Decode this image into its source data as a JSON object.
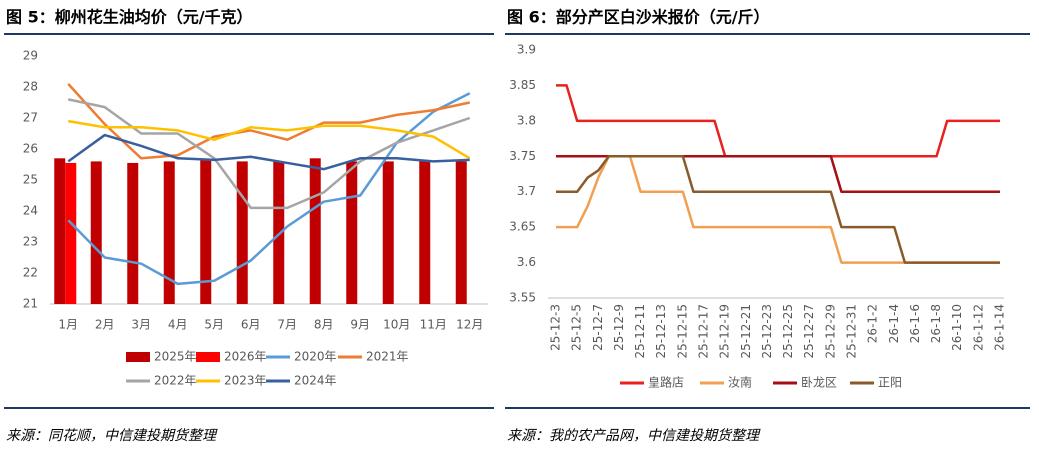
{
  "chart_data": [
    {
      "type": "combo",
      "title": "图 5：柳州花生油均价（元/千克）",
      "source": "来源：同花顺，中信建投期货整理",
      "categories": [
        "1月",
        "2月",
        "3月",
        "4月",
        "5月",
        "6月",
        "7月",
        "8月",
        "9月",
        "10月",
        "11月",
        "12月"
      ],
      "ylim": [
        21,
        29
      ],
      "yticks": [
        21,
        22,
        23,
        24,
        25,
        26,
        27,
        28,
        29
      ],
      "grid": false,
      "series": [
        {
          "name": "2025年",
          "kind": "bar",
          "color": "#C00000",
          "values": [
            25.7,
            25.6,
            25.55,
            25.6,
            25.65,
            25.6,
            25.6,
            25.7,
            25.6,
            25.6,
            25.6,
            25.6
          ]
        },
        {
          "name": "2026年",
          "kind": "bar",
          "color": "#FF0000",
          "values": [
            25.55,
            null,
            null,
            null,
            null,
            null,
            null,
            null,
            null,
            null,
            null,
            null
          ]
        },
        {
          "name": "2020年",
          "kind": "line",
          "color": "#5B9BD5",
          "values": [
            23.7,
            22.5,
            22.3,
            21.65,
            21.75,
            22.4,
            23.5,
            24.3,
            24.5,
            26.2,
            27.2,
            27.8
          ]
        },
        {
          "name": "2021年",
          "kind": "line",
          "color": "#ED7D31",
          "values": [
            28.1,
            26.8,
            25.7,
            25.8,
            26.4,
            26.6,
            26.3,
            26.85,
            26.85,
            27.1,
            27.25,
            27.5
          ]
        },
        {
          "name": "2022年",
          "kind": "line",
          "color": "#A5A5A5",
          "values": [
            27.6,
            27.35,
            26.5,
            26.5,
            25.7,
            24.1,
            24.1,
            24.6,
            25.6,
            26.2,
            26.6,
            27.0
          ]
        },
        {
          "name": "2023年",
          "kind": "line",
          "color": "#FFC000",
          "values": [
            26.9,
            26.7,
            26.7,
            26.6,
            26.3,
            26.7,
            26.6,
            26.75,
            26.75,
            26.6,
            26.4,
            25.7
          ]
        },
        {
          "name": "2024年",
          "kind": "line",
          "color": "#3A5F9F",
          "values": [
            25.6,
            26.45,
            26.1,
            25.7,
            25.65,
            25.75,
            25.55,
            25.35,
            25.7,
            25.7,
            25.6,
            25.65
          ]
        }
      ]
    },
    {
      "type": "line",
      "title": "图 6：部分产区白沙米报价（元/斤）",
      "source": "来源：我的农产品网，中信建投期货整理",
      "categories": [
        "25-12-3",
        null,
        "25-12-5",
        null,
        "25-12-7",
        null,
        "25-12-9",
        null,
        "25-12-11",
        null,
        "25-12-13",
        null,
        "25-12-15",
        null,
        "25-12-17",
        null,
        "25-12-19",
        null,
        "25-12-21",
        null,
        "25-12-23",
        null,
        "25-12-25",
        null,
        "25-12-27",
        null,
        "25-12-29",
        null,
        "25-12-31",
        null,
        "26-1-2",
        null,
        "26-1-4",
        null,
        "26-1-6",
        null,
        "26-1-8",
        null,
        "26-1-10",
        null,
        "26-1-12",
        null,
        "26-1-14"
      ],
      "ylim": [
        3.55,
        3.9
      ],
      "yticks": [
        3.55,
        3.6,
        3.65,
        3.7,
        3.75,
        3.8,
        3.85,
        3.9
      ],
      "grid": false,
      "series": [
        {
          "name": "皇路店",
          "color": "#E8201E",
          "values": [
            3.85,
            3.85,
            3.8,
            3.8,
            3.8,
            3.8,
            3.8,
            3.8,
            3.8,
            3.8,
            3.8,
            3.8,
            3.8,
            3.8,
            3.8,
            3.8,
            3.75,
            3.75,
            3.75,
            3.75,
            3.75,
            3.75,
            3.75,
            3.75,
            3.75,
            3.75,
            3.75,
            3.75,
            3.75,
            3.75,
            3.75,
            3.75,
            3.75,
            3.75,
            3.75,
            3.75,
            3.75,
            3.8,
            3.8,
            3.8,
            3.8,
            3.8,
            3.8
          ]
        },
        {
          "name": "汝南",
          "color": "#F0A050",
          "values": [
            3.65,
            3.65,
            3.65,
            3.68,
            3.72,
            3.75,
            3.75,
            3.75,
            3.7,
            3.7,
            3.7,
            3.7,
            3.7,
            3.65,
            3.65,
            3.65,
            3.65,
            3.65,
            3.65,
            3.65,
            3.65,
            3.65,
            3.65,
            3.65,
            3.65,
            3.65,
            3.65,
            3.6,
            3.6,
            3.6,
            3.6,
            3.6,
            3.6,
            3.6,
            3.6,
            3.6,
            3.6,
            3.6,
            3.6,
            3.6,
            3.6,
            3.6,
            3.6
          ]
        },
        {
          "name": "卧龙区",
          "color": "#A50F15",
          "values": [
            3.75,
            3.75,
            3.75,
            3.75,
            3.75,
            3.75,
            3.75,
            3.75,
            3.75,
            3.75,
            3.75,
            3.75,
            3.75,
            3.75,
            3.75,
            3.75,
            3.75,
            3.75,
            3.75,
            3.75,
            3.75,
            3.75,
            3.75,
            3.75,
            3.75,
            3.75,
            3.75,
            3.7,
            3.7,
            3.7,
            3.7,
            3.7,
            3.7,
            3.7,
            3.7,
            3.7,
            3.7,
            3.7,
            3.7,
            3.7,
            3.7,
            3.7,
            3.7
          ]
        },
        {
          "name": "正阳",
          "color": "#8B5A2B",
          "values": [
            3.7,
            3.7,
            3.7,
            3.72,
            3.73,
            3.75,
            3.75,
            3.75,
            3.75,
            3.75,
            3.75,
            3.75,
            3.75,
            3.7,
            3.7,
            3.7,
            3.7,
            3.7,
            3.7,
            3.7,
            3.7,
            3.7,
            3.7,
            3.7,
            3.7,
            3.7,
            3.7,
            3.65,
            3.65,
            3.65,
            3.65,
            3.65,
            3.65,
            3.6,
            3.6,
            3.6,
            3.6,
            3.6,
            3.6,
            3.6,
            3.6,
            3.6,
            3.6
          ]
        }
      ]
    }
  ]
}
